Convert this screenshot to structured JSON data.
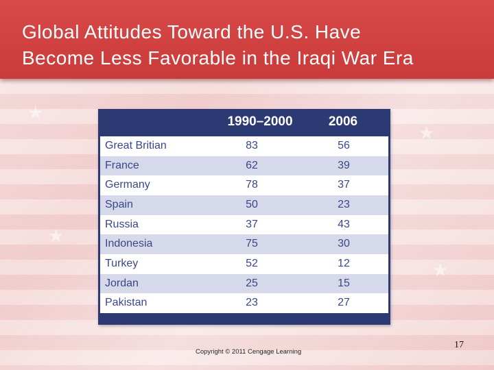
{
  "slide": {
    "title_line1": "Global Attitudes Toward the U.S. Have",
    "title_line2": "Become Less Favorable in the Iraqi War Era",
    "copyright": "Copyright © 2011 Cengage Learning",
    "page_number": "17"
  },
  "table": {
    "headers": [
      "",
      "1990–2000",
      "2006"
    ],
    "rows": [
      {
        "country": "Great Britian",
        "v1990_2000": "83",
        "v2006": "56"
      },
      {
        "country": "France",
        "v1990_2000": "62",
        "v2006": "39"
      },
      {
        "country": "Germany",
        "v1990_2000": "78",
        "v2006": "37"
      },
      {
        "country": "Spain",
        "v1990_2000": "50",
        "v2006": "23"
      },
      {
        "country": "Russia",
        "v1990_2000": "37",
        "v2006": "43"
      },
      {
        "country": "Indonesia",
        "v1990_2000": "75",
        "v2006": "30"
      },
      {
        "country": "Turkey",
        "v1990_2000": "52",
        "v2006": "12"
      },
      {
        "country": "Jordan",
        "v1990_2000": "25",
        "v2006": "15"
      },
      {
        "country": "Pakistan",
        "v1990_2000": "23",
        "v2006": "27"
      }
    ]
  },
  "colors": {
    "header_red": "#d84a48",
    "table_navy": "#2c3a73",
    "row_alt": "#d6d9ea",
    "table_text": "#3a4787"
  }
}
